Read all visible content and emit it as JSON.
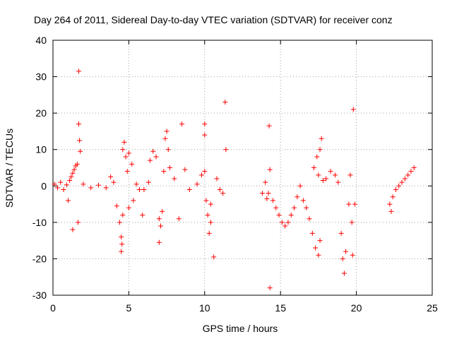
{
  "chart_data": {
    "type": "scatter",
    "title": "Day 264 of 2011, Sidereal Day-to-day VTEC variation (SDTVAR) for receiver conz",
    "xlabel": "GPS time / hours",
    "ylabel": "SDTVAR / TECUs",
    "xlim": [
      0,
      25
    ],
    "ylim": [
      -30,
      40
    ],
    "xticks": [
      0,
      5,
      10,
      15,
      20,
      25
    ],
    "yticks": [
      -30,
      -20,
      -10,
      0,
      10,
      20,
      30,
      40
    ],
    "xtick_labels": [
      "0",
      "5",
      "10",
      "15",
      "20",
      "25"
    ],
    "ytick_labels": [
      "-30",
      "-20",
      "-10",
      "0",
      "10",
      "20",
      "30",
      "40"
    ],
    "grid": true,
    "marker": "+",
    "color": "#ff0000",
    "series": [
      {
        "name": "SDTVAR",
        "points": [
          [
            0.1,
            0.5
          ],
          [
            0.3,
            -0.5
          ],
          [
            0.5,
            1
          ],
          [
            0.7,
            -1
          ],
          [
            0.9,
            0.3
          ],
          [
            1.0,
            -4
          ],
          [
            1.1,
            1.5
          ],
          [
            1.2,
            2.5
          ],
          [
            1.3,
            3.5
          ],
          [
            1.4,
            4.5
          ],
          [
            1.5,
            5.5
          ],
          [
            1.6,
            6
          ],
          [
            1.65,
            -10
          ],
          [
            1.7,
            31.5
          ],
          [
            1.7,
            17
          ],
          [
            1.75,
            12.5
          ],
          [
            1.8,
            9.5
          ],
          [
            1.3,
            -12
          ],
          [
            2,
            0.5
          ],
          [
            2.5,
            -0.5
          ],
          [
            3,
            0.2
          ],
          [
            3.5,
            -0.5
          ],
          [
            3.8,
            2.5
          ],
          [
            4,
            1
          ],
          [
            4.2,
            -5.5
          ],
          [
            4.4,
            -10
          ],
          [
            4.5,
            -14
          ],
          [
            4.5,
            -18
          ],
          [
            4.55,
            -16
          ],
          [
            4.6,
            -8
          ],
          [
            4.6,
            10
          ],
          [
            4.7,
            12
          ],
          [
            4.8,
            8
          ],
          [
            4.9,
            4
          ],
          [
            5.0,
            9
          ],
          [
            5.0,
            -6
          ],
          [
            5.2,
            6
          ],
          [
            5.3,
            -4
          ],
          [
            5.5,
            0.5
          ],
          [
            5.7,
            -1
          ],
          [
            5.9,
            -8
          ],
          [
            6,
            -1
          ],
          [
            6.3,
            1
          ],
          [
            6.4,
            7
          ],
          [
            6.6,
            9.5
          ],
          [
            6.8,
            8
          ],
          [
            7.0,
            -9
          ],
          [
            7.0,
            -15.5
          ],
          [
            7.1,
            -11
          ],
          [
            7.2,
            -7
          ],
          [
            7.3,
            4
          ],
          [
            7.4,
            13
          ],
          [
            7.5,
            15
          ],
          [
            7.6,
            10
          ],
          [
            7.7,
            5
          ],
          [
            8,
            2
          ],
          [
            8.5,
            17
          ],
          [
            8.7,
            4.5
          ],
          [
            8.3,
            -9
          ],
          [
            9,
            -1
          ],
          [
            9.5,
            0.5
          ],
          [
            9.8,
            3
          ],
          [
            10,
            17
          ],
          [
            10,
            14
          ],
          [
            10,
            4
          ],
          [
            10.1,
            -4
          ],
          [
            10.2,
            -8
          ],
          [
            10.3,
            -13
          ],
          [
            10.4,
            -10
          ],
          [
            10.4,
            -5
          ],
          [
            10.6,
            -19.5
          ],
          [
            10.8,
            2
          ],
          [
            11,
            -1
          ],
          [
            11.2,
            -2
          ],
          [
            11.35,
            23
          ],
          [
            11.4,
            10
          ],
          [
            13.8,
            -2
          ],
          [
            14.0,
            1
          ],
          [
            14.1,
            -3.5
          ],
          [
            14.2,
            -2
          ],
          [
            14.25,
            16.5
          ],
          [
            14.3,
            4.5
          ],
          [
            14.3,
            -28
          ],
          [
            14.5,
            -4
          ],
          [
            14.7,
            -6
          ],
          [
            14.9,
            -8
          ],
          [
            15.1,
            -10
          ],
          [
            15.3,
            -11
          ],
          [
            15.5,
            -10
          ],
          [
            15.7,
            -8
          ],
          [
            15.9,
            -6
          ],
          [
            16.1,
            -3
          ],
          [
            16.3,
            0
          ],
          [
            16.5,
            -4
          ],
          [
            16.7,
            -6
          ],
          [
            16.9,
            -9
          ],
          [
            17.1,
            -13
          ],
          [
            17.3,
            -17
          ],
          [
            17.5,
            -19
          ],
          [
            17.6,
            -15
          ],
          [
            17.2,
            5
          ],
          [
            17.4,
            8
          ],
          [
            17.6,
            10
          ],
          [
            17.7,
            13
          ],
          [
            17.5,
            3
          ],
          [
            17.8,
            1.5
          ],
          [
            18,
            2
          ],
          [
            18.3,
            4
          ],
          [
            18.6,
            3
          ],
          [
            18.8,
            1
          ],
          [
            19,
            -13
          ],
          [
            19.1,
            -20
          ],
          [
            19.2,
            -24
          ],
          [
            19.3,
            -18
          ],
          [
            19.5,
            -5
          ],
          [
            19.6,
            3
          ],
          [
            19.7,
            -10
          ],
          [
            19.75,
            -19
          ],
          [
            19.8,
            21
          ],
          [
            19.9,
            -5
          ],
          [
            22.2,
            -5
          ],
          [
            22.4,
            -3
          ],
          [
            22.6,
            -1
          ],
          [
            22.8,
            0
          ],
          [
            23.0,
            1
          ],
          [
            23.2,
            2
          ],
          [
            23.4,
            3
          ],
          [
            23.6,
            4
          ],
          [
            23.8,
            5
          ],
          [
            22.3,
            -7
          ]
        ]
      }
    ]
  }
}
